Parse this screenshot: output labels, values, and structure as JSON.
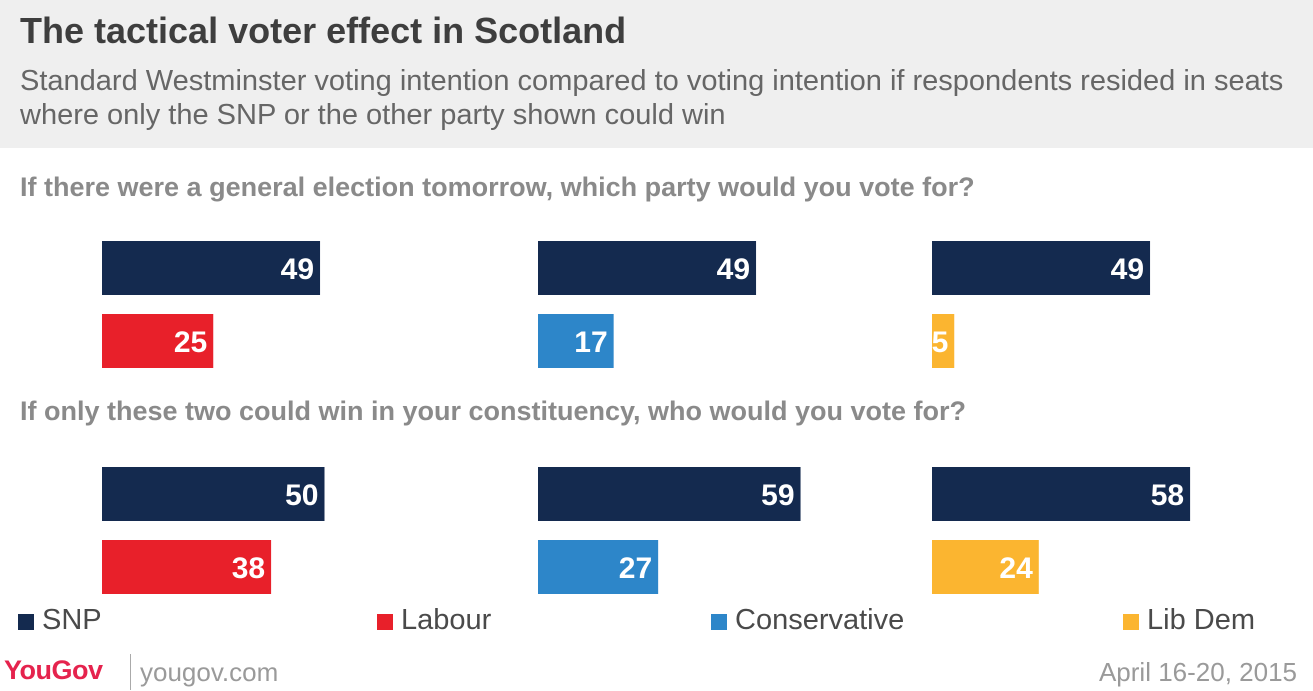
{
  "title": "The tactical voter effect in Scotland",
  "subtitle": "Standard Westminster voting intention compared to voting intention if respondents resided in seats where only the SNP or the other party shown could win",
  "colors": {
    "SNP": "#142a4f",
    "Labour": "#e8202a",
    "Conservative": "#2d86c9",
    "Lib Dem": "#fbb530"
  },
  "chart_data": {
    "type": "bar",
    "questions": [
      "If there were a general election tomorrow, which party would you vote for?",
      "If only these two could win in your constituency, who would you vote for?"
    ],
    "groups": [
      {
        "question": 0,
        "pairs": [
          {
            "other": "Labour",
            "snp": 49,
            "value": 25
          },
          {
            "other": "Conservative",
            "snp": 49,
            "value": 17
          },
          {
            "other": "Lib Dem",
            "snp": 49,
            "value": 5
          }
        ]
      },
      {
        "question": 1,
        "pairs": [
          {
            "other": "Labour",
            "snp": 50,
            "value": 38
          },
          {
            "other": "Conservative",
            "snp": 59,
            "value": 27
          },
          {
            "other": "Lib Dem",
            "snp": 58,
            "value": 24
          }
        ]
      }
    ],
    "legend": [
      "SNP",
      "Labour",
      "Conservative",
      "Lib Dem"
    ]
  },
  "footer": {
    "logo": "YouGov",
    "site": "yougov.com",
    "date": "April 16-20, 2015"
  }
}
